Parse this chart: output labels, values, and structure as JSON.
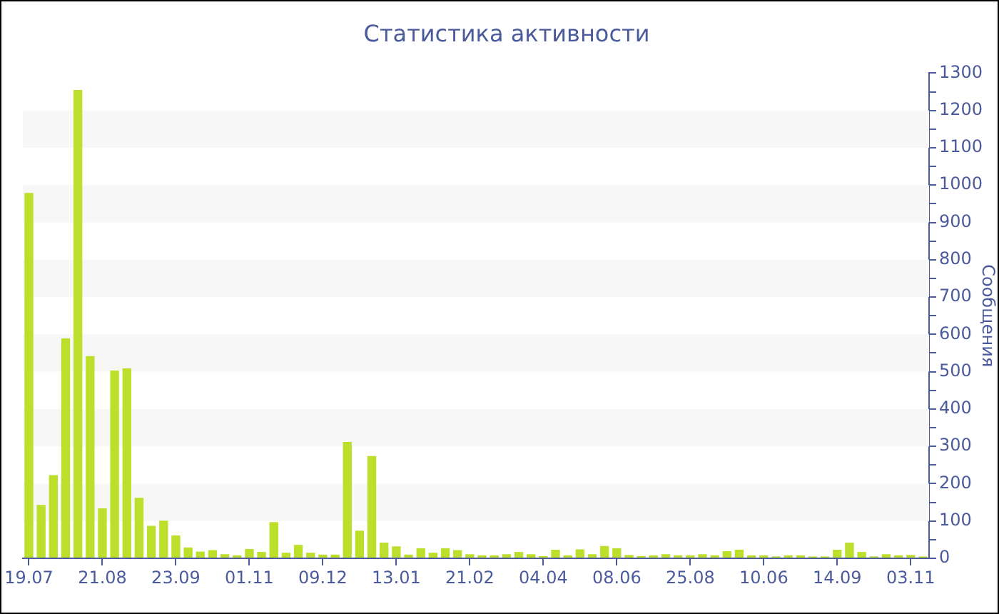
{
  "chart_data": {
    "type": "bar",
    "title": "Статистика активности",
    "ylabel": "Сообщения",
    "categories": [
      "19.07",
      null,
      null,
      null,
      null,
      null,
      "21.08",
      null,
      null,
      null,
      null,
      null,
      "23.09",
      null,
      null,
      null,
      null,
      null,
      "01.11",
      null,
      null,
      null,
      null,
      null,
      "09.12",
      null,
      null,
      null,
      null,
      null,
      "13.01",
      null,
      null,
      null,
      null,
      null,
      "21.02",
      null,
      null,
      null,
      null,
      null,
      "04.04",
      null,
      null,
      null,
      null,
      null,
      "08.06",
      null,
      null,
      null,
      null,
      null,
      "25.08",
      null,
      null,
      null,
      null,
      null,
      "10.06",
      null,
      null,
      null,
      null,
      null,
      "14.09",
      null,
      null,
      null,
      null,
      null,
      "03.11",
      null
    ],
    "values": [
      979,
      143,
      223,
      589,
      1255,
      542,
      134,
      503,
      509,
      162,
      87,
      101,
      61,
      29,
      18,
      22,
      11,
      8,
      25,
      17,
      97,
      15,
      36,
      15,
      10,
      10,
      312,
      74,
      274,
      42,
      32,
      10,
      27,
      15,
      27,
      22,
      11,
      8,
      8,
      11,
      17,
      11,
      6,
      23,
      8,
      24,
      11,
      33,
      27,
      9,
      6,
      8,
      11,
      8,
      8,
      11,
      8,
      19,
      23,
      8,
      8,
      5,
      8,
      8,
      5,
      5,
      23,
      42,
      17,
      5,
      11,
      8,
      9,
      5
    ],
    "color": "#bbdf2b",
    "ylim": [
      0,
      1300
    ],
    "yticks": [
      0,
      {
        "value": 50,
        "label": null
      },
      100,
      {
        "value": 150,
        "label": null
      },
      200,
      {
        "value": 250,
        "label": null
      },
      300,
      {
        "value": 350,
        "label": null
      },
      400,
      {
        "value": 450,
        "label": null
      },
      500,
      {
        "value": 550,
        "label": null
      },
      600,
      {
        "value": 650,
        "label": null
      },
      700,
      {
        "value": 750,
        "label": null
      },
      800,
      {
        "value": 850,
        "label": null
      },
      900,
      {
        "value": 950,
        "label": null
      },
      1000,
      {
        "value": 1050,
        "label": null
      },
      1100,
      {
        "value": 1150,
        "label": null
      },
      1200,
      {
        "value": 1250,
        "label": null
      },
      1300
    ],
    "bands": [
      {
        "axis": "y",
        "from": 100,
        "to": 200,
        "color": "#f7f7f7"
      },
      {
        "axis": "y",
        "from": 300,
        "to": 400,
        "color": "#f7f7f7"
      },
      {
        "axis": "y",
        "from": 500,
        "to": 600,
        "color": "#f7f7f7"
      },
      {
        "axis": "y",
        "from": 700,
        "to": 800,
        "color": "#f7f7f7"
      },
      {
        "axis": "y",
        "from": 900,
        "to": 1000,
        "color": "#f7f7f7"
      },
      {
        "axis": "y",
        "from": 1100,
        "to": 1200,
        "color": "#f7f7f7"
      }
    ],
    "grid": false,
    "legend": false
  }
}
